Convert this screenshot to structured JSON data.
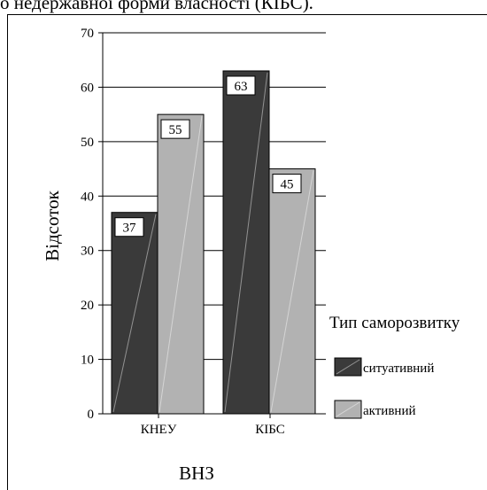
{
  "caption_fragment": "о недержавної форми власності (КІБС).",
  "chart_data": {
    "type": "bar",
    "title": "",
    "xlabel": "ВНЗ",
    "ylabel": "Відсоток",
    "categories": [
      "КНЕУ",
      "КІБС"
    ],
    "series": [
      {
        "name": "ситуативний",
        "values": [
          37,
          63
        ],
        "color": "#3a3a3a"
      },
      {
        "name": "активний",
        "values": [
          55,
          45
        ],
        "color": "#b2b2b2"
      }
    ],
    "ylim": [
      0,
      70
    ],
    "yticks": [
      0,
      10,
      20,
      30,
      40,
      50,
      60,
      70
    ],
    "grid": true,
    "legend_title": "Тип саморозвитку",
    "legend_position": "right"
  }
}
